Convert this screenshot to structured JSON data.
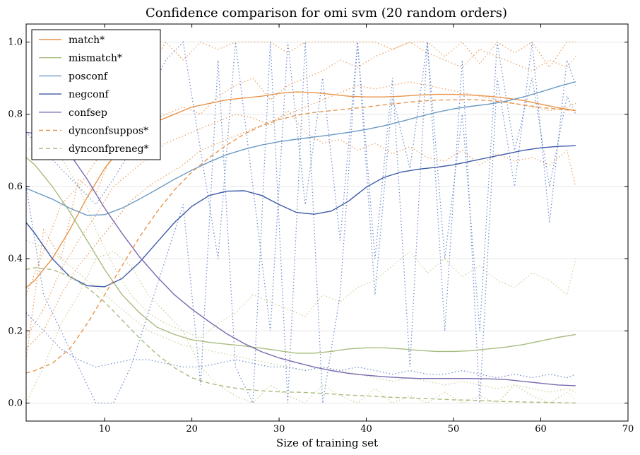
{
  "chart_data": {
    "type": "line",
    "title": "Confidence comparison for omi svm (20 random orders)",
    "xlabel": "Size of training set",
    "ylabel": "",
    "xlim": [
      1,
      70
    ],
    "ylim": [
      -0.05,
      1.05
    ],
    "xticks": [
      10,
      20,
      30,
      40,
      50,
      60,
      70
    ],
    "yticks": [
      0.0,
      0.2,
      0.4,
      0.6,
      0.8,
      1.0
    ],
    "grid": true,
    "legend_position": "top-left",
    "series": [
      {
        "name": "match*",
        "color": "#e8944a",
        "style": "solid",
        "x": [
          1,
          2,
          4,
          6,
          8,
          10,
          12,
          14,
          16,
          18,
          20,
          22,
          24,
          26,
          28,
          30,
          32,
          34,
          36,
          38,
          40,
          42,
          44,
          46,
          48,
          50,
          52,
          54,
          56,
          58,
          60,
          62,
          64
        ],
        "y": [
          0.32,
          0.34,
          0.4,
          0.48,
          0.57,
          0.65,
          0.71,
          0.75,
          0.78,
          0.8,
          0.82,
          0.83,
          0.84,
          0.845,
          0.85,
          0.858,
          0.862,
          0.86,
          0.855,
          0.85,
          0.848,
          0.848,
          0.85,
          0.853,
          0.855,
          0.855,
          0.853,
          0.85,
          0.845,
          0.838,
          0.828,
          0.818,
          0.81
        ]
      },
      {
        "name": "mismatch*",
        "color": "#a8bc7e",
        "style": "solid",
        "x": [
          1,
          2,
          4,
          6,
          8,
          10,
          12,
          14,
          16,
          18,
          20,
          22,
          24,
          26,
          28,
          30,
          32,
          34,
          36,
          38,
          40,
          42,
          44,
          46,
          48,
          50,
          52,
          54,
          56,
          58,
          60,
          62,
          64
        ],
        "y": [
          0.68,
          0.66,
          0.6,
          0.53,
          0.45,
          0.37,
          0.3,
          0.25,
          0.21,
          0.19,
          0.175,
          0.168,
          0.163,
          0.158,
          0.152,
          0.145,
          0.138,
          0.138,
          0.143,
          0.15,
          0.153,
          0.153,
          0.15,
          0.146,
          0.143,
          0.143,
          0.145,
          0.15,
          0.155,
          0.162,
          0.172,
          0.182,
          0.19
        ]
      },
      {
        "name": "posconf",
        "color": "#6a9ac4",
        "style": "solid",
        "x": [
          1,
          2,
          4,
          6,
          8,
          10,
          12,
          14,
          16,
          18,
          20,
          22,
          24,
          26,
          28,
          30,
          32,
          34,
          36,
          38,
          40,
          42,
          44,
          46,
          48,
          50,
          52,
          54,
          56,
          58,
          60,
          62,
          64
        ],
        "y": [
          0.595,
          0.585,
          0.565,
          0.54,
          0.52,
          0.522,
          0.54,
          0.565,
          0.592,
          0.62,
          0.645,
          0.668,
          0.688,
          0.703,
          0.715,
          0.724,
          0.731,
          0.737,
          0.743,
          0.75,
          0.758,
          0.768,
          0.78,
          0.793,
          0.805,
          0.815,
          0.822,
          0.828,
          0.836,
          0.848,
          0.862,
          0.877,
          0.89
        ]
      },
      {
        "name": "negconf",
        "color": "#3d5aa8",
        "style": "solid",
        "x": [
          1,
          2,
          4,
          6,
          8,
          10,
          12,
          14,
          16,
          18,
          20,
          22,
          24,
          26,
          28,
          30,
          32,
          34,
          36,
          38,
          40,
          42,
          44,
          46,
          48,
          50,
          52,
          54,
          56,
          58,
          60,
          62,
          64
        ],
        "y": [
          0.5,
          0.47,
          0.4,
          0.35,
          0.325,
          0.322,
          0.345,
          0.39,
          0.445,
          0.5,
          0.545,
          0.575,
          0.587,
          0.588,
          0.575,
          0.55,
          0.528,
          0.523,
          0.532,
          0.56,
          0.598,
          0.625,
          0.64,
          0.648,
          0.653,
          0.66,
          0.67,
          0.68,
          0.69,
          0.7,
          0.707,
          0.711,
          0.713
        ]
      },
      {
        "name": "confsep",
        "color": "#7a6ab0",
        "style": "solid",
        "x": [
          1,
          2,
          4,
          6,
          8,
          10,
          12,
          14,
          16,
          18,
          20,
          22,
          24,
          26,
          28,
          30,
          32,
          34,
          36,
          38,
          40,
          42,
          44,
          46,
          48,
          50,
          52,
          54,
          56,
          58,
          60,
          62,
          64
        ],
        "y": [
          0.75,
          0.747,
          0.725,
          0.69,
          0.62,
          0.54,
          0.47,
          0.405,
          0.35,
          0.3,
          0.26,
          0.225,
          0.192,
          0.165,
          0.142,
          0.125,
          0.112,
          0.1,
          0.09,
          0.082,
          0.077,
          0.073,
          0.07,
          0.068,
          0.068,
          0.068,
          0.068,
          0.067,
          0.065,
          0.06,
          0.055,
          0.05,
          0.048
        ]
      },
      {
        "name": "dynconfsuppos*",
        "color": "#e8944a",
        "style": "dashed",
        "x": [
          1,
          2,
          4,
          6,
          8,
          10,
          12,
          14,
          16,
          18,
          20,
          22,
          24,
          26,
          28,
          30,
          32,
          34,
          36,
          38,
          40,
          42,
          44,
          46,
          48,
          50,
          52,
          54,
          56,
          58,
          60,
          62,
          64
        ],
        "y": [
          0.083,
          0.09,
          0.11,
          0.15,
          0.22,
          0.3,
          0.38,
          0.46,
          0.53,
          0.59,
          0.64,
          0.68,
          0.715,
          0.745,
          0.768,
          0.785,
          0.797,
          0.805,
          0.81,
          0.815,
          0.82,
          0.826,
          0.831,
          0.836,
          0.839,
          0.84,
          0.841,
          0.838,
          0.833,
          0.826,
          0.819,
          0.814,
          0.81
        ]
      },
      {
        "name": "dynconfpreneg*",
        "color": "#a8bc7e",
        "style": "dashed",
        "x": [
          1,
          2,
          4,
          6,
          8,
          10,
          12,
          14,
          16,
          18,
          20,
          22,
          24,
          26,
          28,
          30,
          32,
          34,
          36,
          38,
          40,
          42,
          44,
          46,
          48,
          50,
          52,
          54,
          56,
          58,
          60,
          62,
          64
        ],
        "y": [
          0.37,
          0.375,
          0.37,
          0.35,
          0.32,
          0.28,
          0.23,
          0.18,
          0.135,
          0.098,
          0.07,
          0.055,
          0.045,
          0.038,
          0.034,
          0.031,
          0.03,
          0.028,
          0.025,
          0.022,
          0.02,
          0.017,
          0.015,
          0.013,
          0.011,
          0.009,
          0.008,
          0.006,
          0.004,
          0.003,
          0.002,
          0.001,
          0.0
        ]
      }
    ],
    "noisy_series": [
      {
        "group": "match-traces",
        "color": "#e8944a",
        "style": "dotted",
        "x": [
          1,
          3,
          5,
          7,
          9,
          11,
          13,
          15,
          17,
          19,
          21,
          23,
          25,
          27,
          29,
          31,
          33,
          35,
          37,
          39,
          41,
          43,
          45,
          47,
          49,
          51,
          53,
          55,
          57,
          59,
          61,
          63,
          64
        ],
        "y": [
          0.12,
          0.48,
          0.4,
          0.62,
          0.58,
          0.7,
          0.85,
          0.92,
          1.0,
          0.95,
          1.0,
          0.98,
          1.0,
          1.0,
          1.0,
          0.97,
          1.0,
          1.0,
          1.0,
          1.0,
          1.0,
          0.98,
          1.0,
          1.0,
          0.96,
          1.0,
          0.94,
          1.0,
          0.97,
          1.0,
          0.93,
          1.0,
          1.0
        ]
      },
      {
        "group": "match-traces",
        "color": "#e8944a",
        "style": "dotted",
        "x": [
          1,
          3,
          5,
          7,
          9,
          11,
          13,
          15,
          17,
          19,
          21,
          23,
          25,
          27,
          29,
          31,
          33,
          35,
          37,
          39,
          41,
          43,
          45,
          47,
          49,
          51,
          53,
          55,
          57,
          59,
          61,
          63,
          64
        ],
        "y": [
          0.3,
          0.42,
          0.55,
          0.6,
          0.67,
          0.72,
          0.75,
          0.78,
          0.8,
          0.82,
          0.8,
          0.85,
          0.88,
          0.9,
          0.84,
          0.88,
          0.9,
          0.92,
          0.95,
          0.93,
          0.96,
          0.98,
          1.0,
          0.97,
          0.95,
          0.93,
          0.98,
          0.96,
          0.94,
          0.92,
          0.95,
          0.93,
          0.96
        ]
      },
      {
        "group": "match-traces",
        "color": "#e8944a",
        "style": "dotted",
        "x": [
          1,
          3,
          5,
          7,
          9,
          11,
          13,
          15,
          17,
          19,
          21,
          23,
          25,
          27,
          29,
          31,
          33,
          35,
          37,
          39,
          41,
          43,
          45,
          47,
          49,
          51,
          53,
          55,
          57,
          59,
          61,
          63,
          64
        ],
        "y": [
          0.18,
          0.26,
          0.37,
          0.45,
          0.52,
          0.6,
          0.64,
          0.68,
          0.72,
          0.74,
          0.76,
          0.78,
          0.8,
          0.79,
          0.77,
          0.81,
          0.75,
          0.72,
          0.73,
          0.7,
          0.72,
          0.69,
          0.71,
          0.68,
          0.67,
          0.7,
          0.66,
          0.69,
          0.67,
          0.68,
          0.66,
          0.7,
          0.6
        ]
      },
      {
        "group": "match-traces",
        "color": "#e8944a",
        "style": "dotted",
        "x": [
          1,
          3,
          5,
          7,
          9,
          11,
          13,
          15,
          17,
          19,
          21,
          23,
          25,
          27,
          29,
          31,
          33,
          35,
          37,
          39,
          41,
          43,
          45,
          47,
          49,
          51,
          53,
          55,
          57,
          59,
          61,
          63,
          64
        ],
        "y": [
          0.15,
          0.2,
          0.3,
          0.38,
          0.44,
          0.5,
          0.56,
          0.6,
          0.63,
          0.66,
          0.7,
          0.72,
          0.74,
          0.76,
          0.78,
          0.8,
          0.82,
          0.84,
          0.86,
          0.88,
          0.87,
          0.88,
          0.89,
          0.88,
          0.87,
          0.86,
          0.85,
          0.84,
          0.83,
          0.82,
          0.81,
          0.82,
          0.83
        ]
      },
      {
        "group": "mismatch-traces",
        "color": "#c8c888",
        "style": "dotted",
        "x": [
          1,
          3,
          5,
          7,
          9,
          11,
          13,
          15,
          17,
          19,
          21,
          23,
          25,
          27,
          29,
          31,
          33,
          35,
          37,
          39,
          41,
          43,
          45,
          47,
          49,
          51,
          53,
          55,
          57,
          59,
          61,
          63,
          64
        ],
        "y": [
          0.0,
          0.1,
          0.22,
          0.3,
          0.4,
          0.42,
          0.38,
          0.3,
          0.25,
          0.2,
          0.1,
          0.05,
          0.02,
          0.0,
          0.05,
          0.02,
          0.0,
          0.05,
          0.02,
          0.0,
          0.04,
          0.0,
          0.02,
          0.0,
          0.03,
          0.0,
          0.02,
          0.0,
          0.05,
          0.02,
          0.0,
          0.03,
          0.01
        ]
      },
      {
        "group": "mismatch-traces",
        "color": "#c8c888",
        "style": "dotted",
        "x": [
          1,
          3,
          5,
          7,
          9,
          11,
          13,
          15,
          17,
          19,
          21,
          23,
          25,
          27,
          29,
          31,
          33,
          35,
          37,
          39,
          41,
          43,
          45,
          47,
          49,
          51,
          53,
          55,
          57,
          59,
          61,
          63,
          64
        ],
        "y": [
          0.7,
          0.72,
          0.68,
          0.6,
          0.48,
          0.38,
          0.3,
          0.25,
          0.22,
          0.2,
          0.18,
          0.22,
          0.25,
          0.3,
          0.28,
          0.26,
          0.24,
          0.3,
          0.28,
          0.32,
          0.34,
          0.38,
          0.42,
          0.36,
          0.4,
          0.35,
          0.38,
          0.34,
          0.32,
          0.36,
          0.34,
          0.3,
          0.4
        ]
      },
      {
        "group": "mismatch-traces",
        "color": "#c8c888",
        "style": "dotted",
        "x": [
          1,
          3,
          5,
          7,
          9,
          11,
          13,
          15,
          17,
          19,
          21,
          23,
          25,
          27,
          29,
          31,
          33,
          35,
          37,
          39,
          41,
          43,
          45,
          47,
          49,
          51,
          53,
          55,
          57,
          59,
          61,
          63,
          64
        ],
        "y": [
          0.45,
          0.43,
          0.4,
          0.36,
          0.32,
          0.28,
          0.24,
          0.2,
          0.18,
          0.16,
          0.15,
          0.14,
          0.13,
          0.12,
          0.11,
          0.1,
          0.09,
          0.1,
          0.09,
          0.08,
          0.07,
          0.06,
          0.07,
          0.06,
          0.05,
          0.06,
          0.05,
          0.04,
          0.05,
          0.04,
          0.03,
          0.04,
          0.03
        ]
      },
      {
        "group": "conf-traces",
        "color": "#5b7cc4",
        "style": "dotted",
        "x": [
          1,
          3,
          5,
          7,
          9,
          11,
          13,
          15,
          17,
          19,
          21,
          23,
          25,
          27,
          29,
          31,
          33,
          35,
          37,
          39,
          41,
          43,
          45,
          47,
          49,
          51,
          53,
          55,
          57,
          59,
          61,
          63,
          64
        ],
        "y": [
          0.6,
          0.3,
          0.2,
          0.1,
          0.0,
          0.0,
          0.1,
          0.25,
          0.4,
          0.55,
          0.05,
          0.95,
          0.1,
          0.0,
          1.0,
          0.0,
          1.0,
          0.0,
          0.3,
          1.0,
          0.4,
          0.9,
          0.1,
          1.0,
          0.2,
          0.95,
          0.0,
          0.9,
          0.6,
          1.0,
          0.5,
          0.95,
          0.88
        ]
      },
      {
        "group": "conf-traces",
        "color": "#5b7cc4",
        "style": "dotted",
        "x": [
          1,
          3,
          5,
          7,
          9,
          11,
          13,
          15,
          17,
          19,
          21,
          23,
          25,
          27,
          29,
          31,
          33,
          35,
          37,
          39,
          41,
          43,
          45,
          47,
          49,
          51,
          53,
          55,
          57,
          59,
          61,
          63,
          64
        ],
        "y": [
          0.75,
          0.7,
          0.65,
          0.6,
          0.55,
          0.62,
          0.7,
          0.85,
          0.95,
          1.0,
          0.7,
          0.4,
          1.0,
          0.6,
          0.2,
          1.0,
          0.55,
          0.9,
          0.45,
          1.0,
          0.3,
          0.85,
          0.65,
          1.0,
          0.4,
          0.8,
          0.2,
          1.0,
          0.7,
          0.9,
          0.6,
          0.85,
          0.8
        ]
      },
      {
        "group": "conf-traces",
        "color": "#5b7cc4",
        "style": "dotted",
        "x": [
          1,
          3,
          5,
          7,
          9,
          11,
          13,
          15,
          17,
          19,
          21,
          23,
          25,
          27,
          29,
          31,
          33,
          35,
          37,
          39,
          41,
          43,
          45,
          47,
          49,
          51,
          53,
          55,
          57,
          59,
          61,
          63,
          64
        ],
        "y": [
          0.25,
          0.2,
          0.15,
          0.12,
          0.1,
          0.11,
          0.12,
          0.12,
          0.11,
          0.1,
          0.1,
          0.11,
          0.12,
          0.11,
          0.1,
          0.1,
          0.09,
          0.1,
          0.09,
          0.1,
          0.09,
          0.08,
          0.09,
          0.08,
          0.08,
          0.09,
          0.08,
          0.07,
          0.08,
          0.07,
          0.08,
          0.07,
          0.08
        ]
      }
    ]
  }
}
